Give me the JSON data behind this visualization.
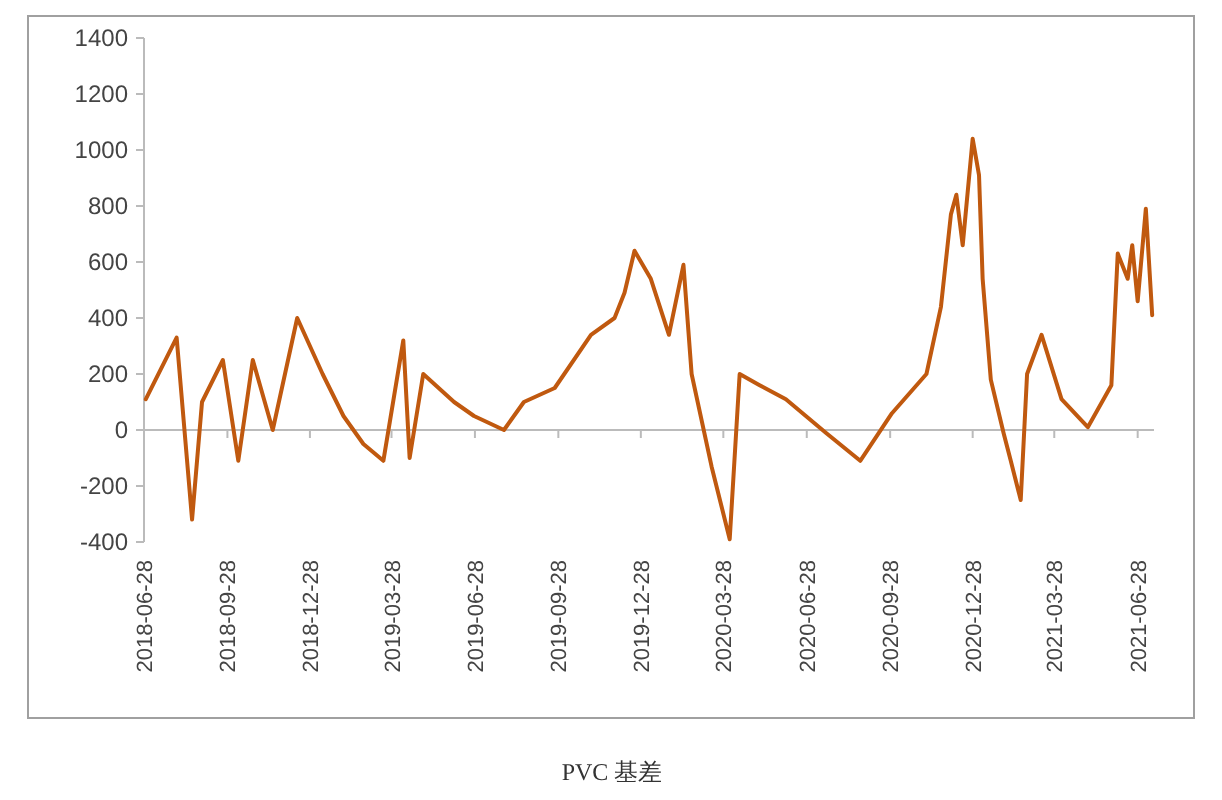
{
  "chart_data": {
    "type": "line",
    "xlabel": "PVC 基差",
    "x": [
      "2018-06-30",
      "2018-08-03",
      "2018-08-20",
      "2018-08-31",
      "2018-09-23",
      "2018-10-10",
      "2018-10-26",
      "2018-11-17",
      "2018-12-14",
      "2019-01-11",
      "2019-02-03",
      "2019-02-25",
      "2019-03-19",
      "2019-04-10",
      "2019-04-17",
      "2019-05-02",
      "2019-06-05",
      "2019-06-27",
      "2019-07-30",
      "2019-08-21",
      "2019-09-24",
      "2019-11-03",
      "2019-11-29",
      "2019-12-10",
      "2019-12-21",
      "2020-01-08",
      "2020-01-28",
      "2020-02-13",
      "2020-02-22",
      "2020-03-15",
      "2020-04-04",
      "2020-04-15",
      "2020-05-07",
      "2020-06-05",
      "2020-07-19",
      "2020-08-26",
      "2020-09-30",
      "2020-11-07",
      "2020-11-23",
      "2020-12-04",
      "2020-12-10",
      "2020-12-17",
      "2020-12-28",
      "2021-01-04",
      "2021-01-08",
      "2021-01-17",
      "2021-01-31",
      "2021-02-08",
      "2021-02-19",
      "2021-02-26",
      "2021-03-14",
      "2021-04-05",
      "2021-05-04",
      "2021-05-30",
      "2021-06-06",
      "2021-06-17",
      "2021-06-22",
      "2021-06-28",
      "2021-07-07",
      "2021-07-14"
    ],
    "series": [
      {
        "color": "#c0590f",
        "values": [
          110,
          330,
          -320,
          100,
          250,
          -110,
          250,
          0,
          400,
          200,
          50,
          -50,
          -110,
          320,
          -100,
          200,
          100,
          50,
          0,
          100,
          150,
          340,
          400,
          490,
          640,
          540,
          340,
          590,
          200,
          -130,
          -390,
          200,
          160,
          110,
          -10,
          -110,
          60,
          200,
          440,
          770,
          840,
          660,
          1040,
          910,
          540,
          180,
          -10,
          -110,
          -250,
          200,
          340,
          110,
          10,
          160,
          630,
          540,
          660,
          460,
          790,
          410
        ]
      }
    ],
    "xlim": [
      "2018-06-28",
      "2021-07-16"
    ],
    "xticks": [
      "2018-06-28",
      "2018-09-28",
      "2018-12-28",
      "2019-03-28",
      "2019-06-28",
      "2019-09-28",
      "2019-12-28",
      "2020-03-28",
      "2020-06-28",
      "2020-09-28",
      "2020-12-28",
      "2021-03-28",
      "2021-06-28"
    ],
    "ylim": [
      -400,
      1400
    ],
    "yticks": [
      -400,
      -200,
      0,
      200,
      400,
      600,
      800,
      1000,
      1200,
      1400
    ]
  }
}
